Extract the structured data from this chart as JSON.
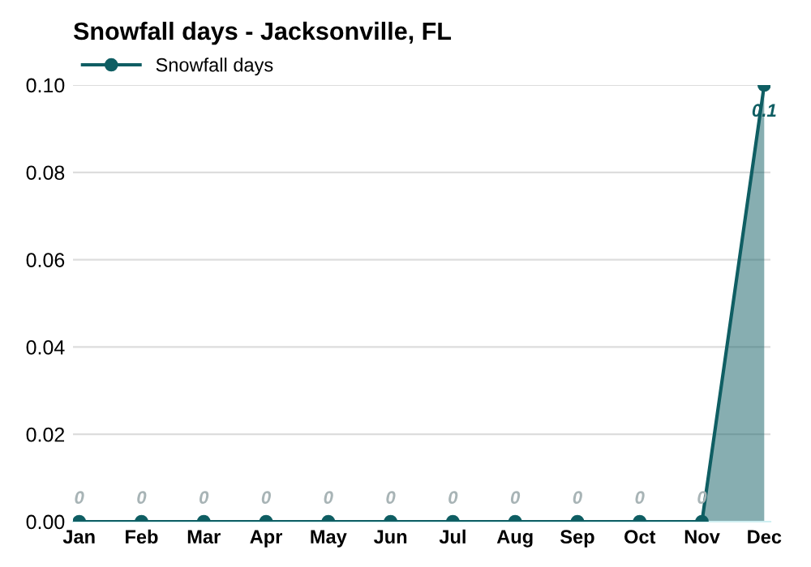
{
  "chart_data": {
    "type": "area",
    "title": "Snowfall days - Jacksonville, FL",
    "categories": [
      "Jan",
      "Feb",
      "Mar",
      "Apr",
      "May",
      "Jun",
      "Jul",
      "Aug",
      "Sep",
      "Oct",
      "Nov",
      "Dec"
    ],
    "series": [
      {
        "name": "Snowfall days",
        "color": "#0f5e63",
        "values": [
          0,
          0,
          0,
          0,
          0,
          0,
          0,
          0,
          0,
          0,
          0,
          0.1
        ]
      }
    ],
    "ylim": [
      0,
      0.1
    ],
    "yticks": [
      {
        "value": 0,
        "label": "0.00"
      },
      {
        "value": 0.02,
        "label": "0.02"
      },
      {
        "value": 0.04,
        "label": "0.04"
      },
      {
        "value": 0.06,
        "label": "0.06"
      },
      {
        "value": 0.08,
        "label": "0.08"
      },
      {
        "value": 0.1,
        "label": "0.10"
      }
    ],
    "grid": "y",
    "legend": "top left",
    "marker": "circle",
    "line_style": "solid",
    "data_labels": true
  }
}
